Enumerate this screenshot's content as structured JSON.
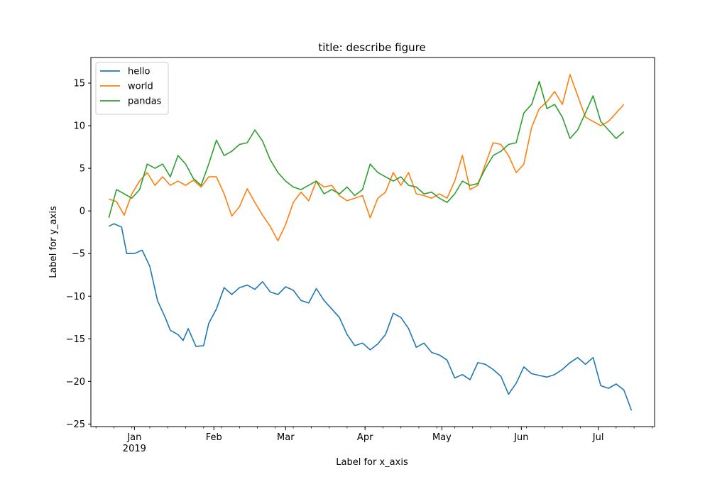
{
  "chart_data": {
    "type": "line",
    "title": "title: describe figure",
    "xlabel": "Label for x_axis",
    "ylabel": "Label for y_axis",
    "x_range": [
      "2018-12-15",
      "2019-07-23"
    ],
    "ylim": [
      -25.3,
      18
    ],
    "y_ticks": [
      15,
      10,
      5,
      0,
      -5,
      -10,
      -15,
      -20,
      -25
    ],
    "y_tick_labels": [
      "15",
      "10",
      "5",
      "0",
      "−5",
      "−10",
      "−15",
      "−20",
      "−25"
    ],
    "x_ticks": [
      {
        "date": "2019-01-01",
        "label": "Jan",
        "sublabel": "2019"
      },
      {
        "date": "2019-02-01",
        "label": "Feb"
      },
      {
        "date": "2019-03-01",
        "label": "Mar"
      },
      {
        "date": "2019-04-01",
        "label": "Apr"
      },
      {
        "date": "2019-05-01",
        "label": "May"
      },
      {
        "date": "2019-06-01",
        "label": "Jun"
      },
      {
        "date": "2019-07-01",
        "label": "Jul"
      }
    ],
    "grid": false,
    "legend_position": "upper-left",
    "series": [
      {
        "name": "hello",
        "color": "#1f77b4",
        "points": [
          [
            "2018-12-22",
            -1.8
          ],
          [
            "2018-12-24",
            -1.5
          ],
          [
            "2018-12-27",
            -1.9
          ],
          [
            "2018-12-29",
            -5.0
          ],
          [
            "2019-01-01",
            -5.0
          ],
          [
            "2019-01-04",
            -4.6
          ],
          [
            "2019-01-07",
            -6.5
          ],
          [
            "2019-01-10",
            -10.5
          ],
          [
            "2019-01-13",
            -12.5
          ],
          [
            "2019-01-15",
            -14.0
          ],
          [
            "2019-01-18",
            -14.5
          ],
          [
            "2019-01-20",
            -15.2
          ],
          [
            "2019-01-22",
            -13.8
          ],
          [
            "2019-01-25",
            -15.9
          ],
          [
            "2019-01-28",
            -15.8
          ],
          [
            "2019-01-30",
            -13.2
          ],
          [
            "2019-02-02",
            -11.5
          ],
          [
            "2019-02-05",
            -9.0
          ],
          [
            "2019-02-08",
            -9.8
          ],
          [
            "2019-02-11",
            -9.0
          ],
          [
            "2019-02-14",
            -8.7
          ],
          [
            "2019-02-17",
            -9.2
          ],
          [
            "2019-02-20",
            -8.3
          ],
          [
            "2019-02-23",
            -9.5
          ],
          [
            "2019-02-26",
            -9.8
          ],
          [
            "2019-03-01",
            -8.9
          ],
          [
            "2019-03-04",
            -9.3
          ],
          [
            "2019-03-07",
            -10.5
          ],
          [
            "2019-03-10",
            -10.8
          ],
          [
            "2019-03-13",
            -9.1
          ],
          [
            "2019-03-16",
            -10.5
          ],
          [
            "2019-03-19",
            -11.5
          ],
          [
            "2019-03-22",
            -12.5
          ],
          [
            "2019-03-25",
            -14.5
          ],
          [
            "2019-03-28",
            -15.8
          ],
          [
            "2019-03-31",
            -15.5
          ],
          [
            "2019-04-03",
            -16.3
          ],
          [
            "2019-04-06",
            -15.6
          ],
          [
            "2019-04-09",
            -14.5
          ],
          [
            "2019-04-12",
            -12.0
          ],
          [
            "2019-04-15",
            -12.5
          ],
          [
            "2019-04-18",
            -13.8
          ],
          [
            "2019-04-21",
            -16.0
          ],
          [
            "2019-04-24",
            -15.5
          ],
          [
            "2019-04-27",
            -16.6
          ],
          [
            "2019-04-30",
            -16.9
          ],
          [
            "2019-05-03",
            -17.5
          ],
          [
            "2019-05-06",
            -19.6
          ],
          [
            "2019-05-09",
            -19.2
          ],
          [
            "2019-05-12",
            -19.8
          ],
          [
            "2019-05-15",
            -17.8
          ],
          [
            "2019-05-18",
            -18.0
          ],
          [
            "2019-05-21",
            -18.6
          ],
          [
            "2019-05-24",
            -19.4
          ],
          [
            "2019-05-27",
            -21.5
          ],
          [
            "2019-05-30",
            -20.2
          ],
          [
            "2019-06-02",
            -18.3
          ],
          [
            "2019-06-05",
            -19.1
          ],
          [
            "2019-06-08",
            -19.3
          ],
          [
            "2019-06-11",
            -19.5
          ],
          [
            "2019-06-14",
            -19.2
          ],
          [
            "2019-06-17",
            -18.6
          ],
          [
            "2019-06-20",
            -17.8
          ],
          [
            "2019-06-23",
            -17.2
          ],
          [
            "2019-06-26",
            -18.0
          ],
          [
            "2019-06-29",
            -17.2
          ],
          [
            "2019-07-02",
            -20.5
          ],
          [
            "2019-07-05",
            -20.8
          ],
          [
            "2019-07-08",
            -20.3
          ],
          [
            "2019-07-11",
            -21.0
          ],
          [
            "2019-07-14",
            -23.4
          ]
        ]
      },
      {
        "name": "world",
        "color": "#ff7f0e",
        "points": [
          [
            "2018-12-22",
            1.4
          ],
          [
            "2018-12-25",
            1.1
          ],
          [
            "2018-12-28",
            -0.5
          ],
          [
            "2018-12-31",
            2.0
          ],
          [
            "2019-01-03",
            3.5
          ],
          [
            "2019-01-06",
            4.5
          ],
          [
            "2019-01-09",
            3.0
          ],
          [
            "2019-01-12",
            4.0
          ],
          [
            "2019-01-15",
            3.0
          ],
          [
            "2019-01-18",
            3.5
          ],
          [
            "2019-01-21",
            3.0
          ],
          [
            "2019-01-24",
            3.6
          ],
          [
            "2019-01-27",
            2.8
          ],
          [
            "2019-01-30",
            4.0
          ],
          [
            "2019-02-02",
            4.0
          ],
          [
            "2019-02-05",
            2.0
          ],
          [
            "2019-02-08",
            -0.6
          ],
          [
            "2019-02-11",
            0.5
          ],
          [
            "2019-02-14",
            2.6
          ],
          [
            "2019-02-17",
            1.0
          ],
          [
            "2019-02-20",
            -0.5
          ],
          [
            "2019-02-23",
            -1.8
          ],
          [
            "2019-02-26",
            -3.5
          ],
          [
            "2019-03-01",
            -1.6
          ],
          [
            "2019-03-04",
            1.0
          ],
          [
            "2019-03-07",
            2.2
          ],
          [
            "2019-03-10",
            1.2
          ],
          [
            "2019-03-13",
            3.5
          ],
          [
            "2019-03-16",
            2.8
          ],
          [
            "2019-03-19",
            3.0
          ],
          [
            "2019-03-22",
            1.8
          ],
          [
            "2019-03-25",
            1.2
          ],
          [
            "2019-03-28",
            1.5
          ],
          [
            "2019-03-31",
            1.8
          ],
          [
            "2019-04-03",
            -0.8
          ],
          [
            "2019-04-06",
            1.5
          ],
          [
            "2019-04-09",
            2.2
          ],
          [
            "2019-04-12",
            4.5
          ],
          [
            "2019-04-15",
            3.0
          ],
          [
            "2019-04-18",
            4.5
          ],
          [
            "2019-04-21",
            2.0
          ],
          [
            "2019-04-24",
            1.8
          ],
          [
            "2019-04-27",
            1.5
          ],
          [
            "2019-04-30",
            2.0
          ],
          [
            "2019-05-03",
            1.5
          ],
          [
            "2019-05-06",
            3.5
          ],
          [
            "2019-05-09",
            6.5
          ],
          [
            "2019-05-12",
            2.5
          ],
          [
            "2019-05-15",
            3.0
          ],
          [
            "2019-05-18",
            5.5
          ],
          [
            "2019-05-21",
            8.0
          ],
          [
            "2019-05-24",
            7.8
          ],
          [
            "2019-05-27",
            6.5
          ],
          [
            "2019-05-30",
            4.5
          ],
          [
            "2019-06-02",
            5.5
          ],
          [
            "2019-06-05",
            9.8
          ],
          [
            "2019-06-08",
            12.0
          ],
          [
            "2019-06-11",
            12.8
          ],
          [
            "2019-06-14",
            14.0
          ],
          [
            "2019-06-17",
            12.5
          ],
          [
            "2019-06-20",
            16.0
          ],
          [
            "2019-06-23",
            13.5
          ],
          [
            "2019-06-26",
            11.0
          ],
          [
            "2019-06-29",
            10.5
          ],
          [
            "2019-07-02",
            10.0
          ],
          [
            "2019-07-05",
            10.5
          ],
          [
            "2019-07-08",
            11.5
          ],
          [
            "2019-07-11",
            12.5
          ]
        ]
      },
      {
        "name": "pandas",
        "color": "#2ca02c",
        "points": [
          [
            "2018-12-22",
            -0.8
          ],
          [
            "2018-12-25",
            2.5
          ],
          [
            "2018-12-28",
            2.0
          ],
          [
            "2018-12-31",
            1.5
          ],
          [
            "2019-01-03",
            2.5
          ],
          [
            "2019-01-06",
            5.5
          ],
          [
            "2019-01-09",
            5.0
          ],
          [
            "2019-01-12",
            5.5
          ],
          [
            "2019-01-15",
            4.0
          ],
          [
            "2019-01-18",
            6.5
          ],
          [
            "2019-01-21",
            5.5
          ],
          [
            "2019-01-24",
            3.8
          ],
          [
            "2019-01-27",
            3.0
          ],
          [
            "2019-01-30",
            5.5
          ],
          [
            "2019-02-02",
            8.3
          ],
          [
            "2019-02-05",
            6.5
          ],
          [
            "2019-02-08",
            7.0
          ],
          [
            "2019-02-11",
            7.8
          ],
          [
            "2019-02-14",
            8.0
          ],
          [
            "2019-02-17",
            9.5
          ],
          [
            "2019-02-20",
            8.2
          ],
          [
            "2019-02-23",
            6.0
          ],
          [
            "2019-02-26",
            4.5
          ],
          [
            "2019-03-01",
            3.5
          ],
          [
            "2019-03-04",
            2.8
          ],
          [
            "2019-03-07",
            2.5
          ],
          [
            "2019-03-10",
            3.0
          ],
          [
            "2019-03-13",
            3.5
          ],
          [
            "2019-03-16",
            2.0
          ],
          [
            "2019-03-19",
            2.5
          ],
          [
            "2019-03-22",
            2.0
          ],
          [
            "2019-03-25",
            2.8
          ],
          [
            "2019-03-28",
            1.8
          ],
          [
            "2019-03-31",
            2.5
          ],
          [
            "2019-04-03",
            5.5
          ],
          [
            "2019-04-06",
            4.5
          ],
          [
            "2019-04-09",
            4.0
          ],
          [
            "2019-04-12",
            3.5
          ],
          [
            "2019-04-15",
            4.0
          ],
          [
            "2019-04-18",
            3.0
          ],
          [
            "2019-04-21",
            2.8
          ],
          [
            "2019-04-24",
            2.0
          ],
          [
            "2019-04-27",
            2.2
          ],
          [
            "2019-04-30",
            1.5
          ],
          [
            "2019-05-03",
            1.0
          ],
          [
            "2019-05-06",
            2.0
          ],
          [
            "2019-05-09",
            3.5
          ],
          [
            "2019-05-12",
            3.0
          ],
          [
            "2019-05-15",
            3.2
          ],
          [
            "2019-05-18",
            5.0
          ],
          [
            "2019-05-21",
            6.5
          ],
          [
            "2019-05-24",
            7.0
          ],
          [
            "2019-05-27",
            7.8
          ],
          [
            "2019-05-30",
            8.0
          ],
          [
            "2019-06-02",
            11.5
          ],
          [
            "2019-06-05",
            12.5
          ],
          [
            "2019-06-08",
            15.2
          ],
          [
            "2019-06-11",
            12.0
          ],
          [
            "2019-06-14",
            12.5
          ],
          [
            "2019-06-17",
            11.0
          ],
          [
            "2019-06-20",
            8.5
          ],
          [
            "2019-06-23",
            9.5
          ],
          [
            "2019-06-26",
            11.5
          ],
          [
            "2019-06-29",
            13.5
          ],
          [
            "2019-07-02",
            10.5
          ],
          [
            "2019-07-05",
            9.5
          ],
          [
            "2019-07-08",
            8.5
          ],
          [
            "2019-07-11",
            9.3
          ]
        ]
      }
    ]
  }
}
